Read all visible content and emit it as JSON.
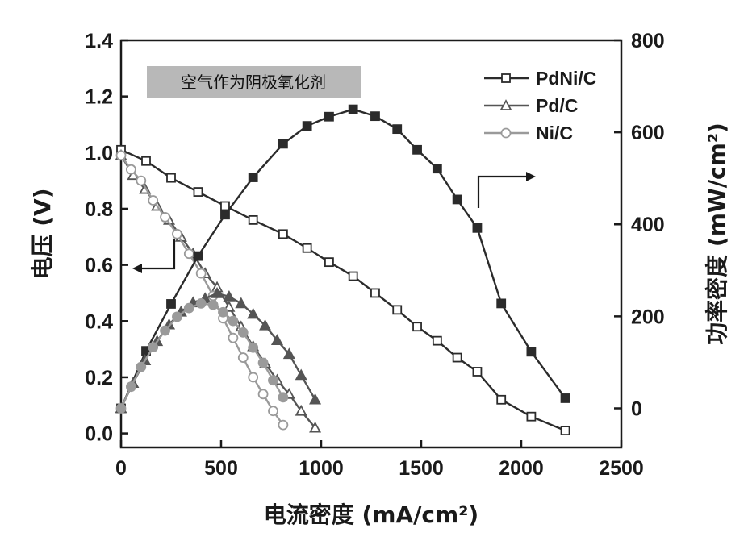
{
  "chart_data": {
    "type": "line",
    "annotation": "空气作为阴极氧化剂",
    "xlabel": "电流密度 (mA/cm²)",
    "ylabel_left": "电压 (V)",
    "ylabel_right": "功率密度 (mW/cm²)",
    "xlim": [
      0,
      2500
    ],
    "ylim_left": [
      -0.05,
      1.4
    ],
    "ylim_right": [
      -85,
      800
    ],
    "xticks": [
      "0",
      "500",
      "1000",
      "1500",
      "2000",
      "2500"
    ],
    "yticks_left": [
      "0.0",
      "0.2",
      "0.4",
      "0.6",
      "0.8",
      "1.0",
      "1.2",
      "1.4"
    ],
    "yticks_right": [
      "0",
      "200",
      "400",
      "600",
      "800"
    ],
    "legend_position": "top-right",
    "colors": {
      "PdNi/C": "#2b2b2b",
      "Pd/C": "#555555",
      "Ni/C": "#9a9a9a"
    },
    "polarization": [
      {
        "name": "PdNi/C",
        "marker": "square",
        "x": [
          0,
          125,
          250,
          385,
          520,
          660,
          810,
          930,
          1040,
          1160,
          1270,
          1380,
          1480,
          1580,
          1680,
          1780,
          1900,
          2050,
          2220
        ],
        "y": [
          1.01,
          0.97,
          0.91,
          0.86,
          0.81,
          0.76,
          0.71,
          0.66,
          0.61,
          0.56,
          0.5,
          0.44,
          0.38,
          0.33,
          0.27,
          0.22,
          0.12,
          0.06,
          0.01
        ]
      },
      {
        "name": "Pd/C",
        "marker": "triangle",
        "x": [
          0,
          60,
          120,
          180,
          240,
          300,
          360,
          420,
          480,
          540,
          600,
          660,
          720,
          780,
          840,
          900,
          970
        ],
        "y": [
          0.99,
          0.92,
          0.87,
          0.81,
          0.76,
          0.7,
          0.64,
          0.57,
          0.52,
          0.45,
          0.38,
          0.31,
          0.25,
          0.19,
          0.14,
          0.08,
          0.02
        ]
      },
      {
        "name": "Ni/C",
        "marker": "circle",
        "x": [
          0,
          50,
          100,
          160,
          220,
          280,
          340,
          400,
          460,
          510,
          560,
          610,
          660,
          710,
          760,
          810
        ],
        "y": [
          0.99,
          0.94,
          0.9,
          0.83,
          0.77,
          0.71,
          0.64,
          0.57,
          0.49,
          0.41,
          0.34,
          0.27,
          0.2,
          0.14,
          0.08,
          0.03
        ]
      }
    ],
    "power": [
      {
        "name": "PdNi/C",
        "marker": "square",
        "x": [
          0,
          125,
          250,
          385,
          520,
          660,
          810,
          930,
          1040,
          1160,
          1270,
          1380,
          1480,
          1580,
          1680,
          1780,
          1900,
          2050,
          2220
        ],
        "y": [
          0,
          125,
          227,
          331,
          421,
          502,
          575,
          614,
          634,
          650,
          635,
          607,
          562,
          521,
          454,
          392,
          228,
          123,
          22
        ]
      },
      {
        "name": "Pd/C",
        "marker": "triangle",
        "x": [
          0,
          60,
          120,
          180,
          240,
          300,
          360,
          420,
          480,
          540,
          600,
          660,
          720,
          780,
          840,
          900,
          970
        ],
        "y": [
          0,
          55,
          104,
          146,
          182,
          210,
          230,
          239,
          250,
          243,
          228,
          205,
          180,
          148,
          118,
          72,
          19
        ]
      },
      {
        "name": "Ni/C",
        "marker": "circle",
        "x": [
          0,
          50,
          100,
          160,
          220,
          280,
          340,
          400,
          460,
          510,
          560,
          610,
          660,
          710,
          760,
          810
        ],
        "y": [
          0,
          47,
          90,
          133,
          169,
          199,
          218,
          228,
          225,
          209,
          190,
          165,
          132,
          99,
          61,
          24
        ]
      }
    ]
  }
}
